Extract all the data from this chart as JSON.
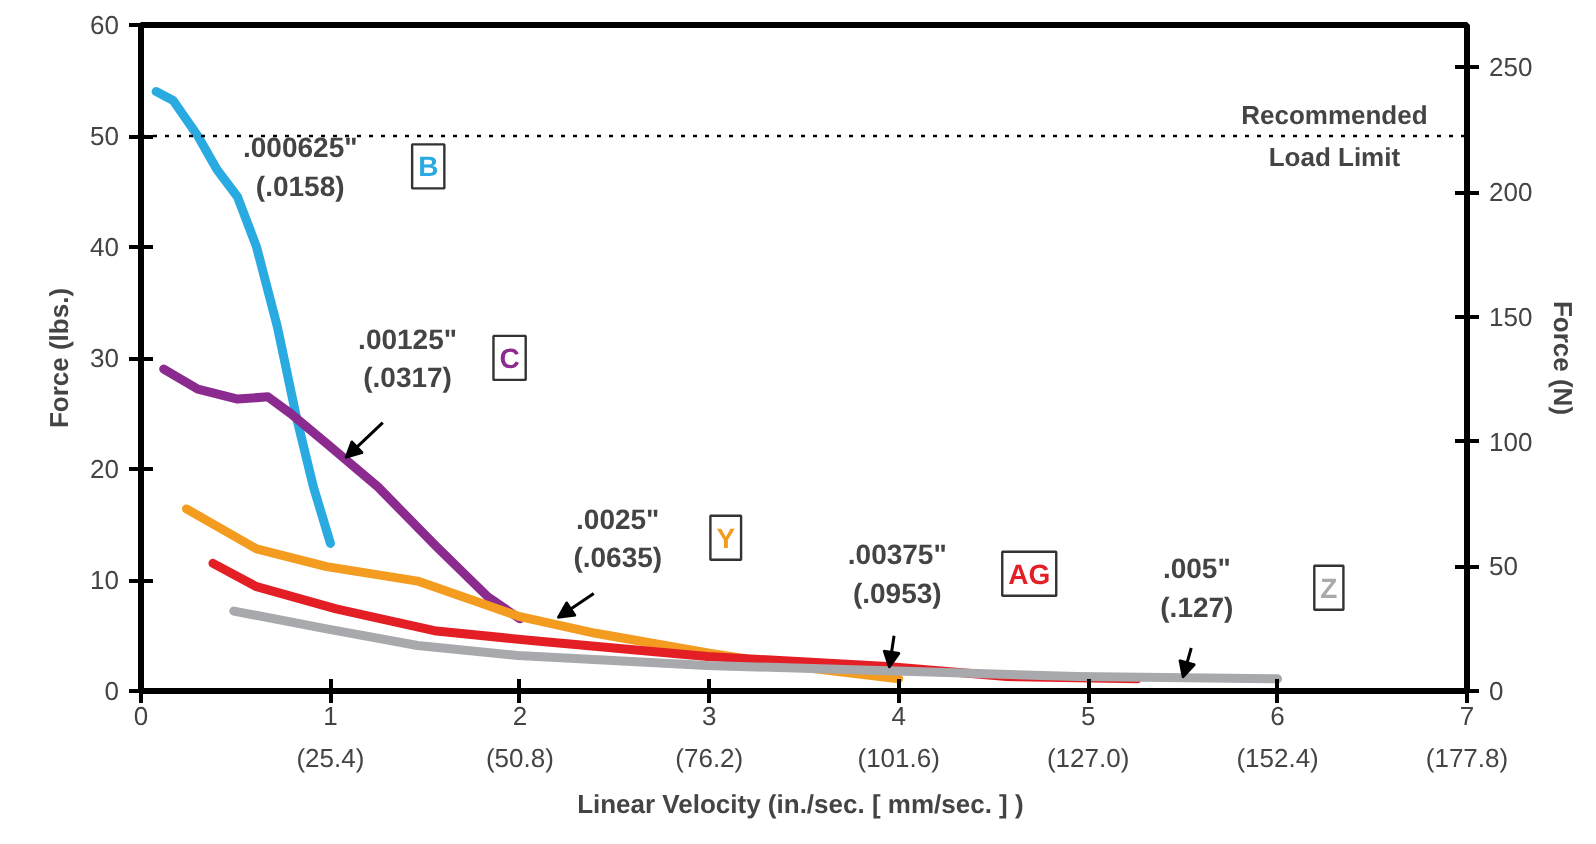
{
  "chart_data": {
    "type": "line",
    "xlabel": "Linear Velocity  (in./sec. [ mm/sec. ] )",
    "ylabel": "Force (lbs.)",
    "y2label": "Force (N)",
    "xlim": [
      0,
      7
    ],
    "xticks": [
      0,
      1,
      2,
      3,
      4,
      5,
      6,
      7
    ],
    "x2lim": [
      0,
      177.8
    ],
    "x2ticks": [
      {
        "value": 25.4,
        "label": "(25.4)"
      },
      {
        "value": 50.8,
        "label": "(50.8)"
      },
      {
        "value": 76.2,
        "label": "(76.2)"
      },
      {
        "value": 101.6,
        "label": "(101.6)"
      },
      {
        "value": 127.0,
        "label": "(127.0)"
      },
      {
        "value": 152.4,
        "label": "(152.4)"
      },
      {
        "value": 177.8,
        "label": "(177.8)"
      }
    ],
    "ylim": [
      0,
      60
    ],
    "yticks": [
      0,
      10,
      20,
      30,
      40,
      50,
      60
    ],
    "y2lim": [
      0,
      267
    ],
    "y2ticks": [
      0,
      50,
      100,
      150,
      200,
      250
    ],
    "grid": false,
    "marker": "none",
    "line_style": "solid",
    "ref_lines": [
      {
        "axis": "y",
        "value": 50,
        "label": "Recommended\nLoad Limit",
        "color": "#000000",
        "line_style": "dotted"
      }
    ],
    "annotations": [
      {
        "text": ".000625\"\n(.0158)",
        "x": 0.45,
        "y": 46
      },
      {
        "text": ".00125\"\n(.0317)",
        "x": 1.08,
        "y": 21
      },
      {
        "text": ".0025\"\n(.0635)",
        "x": 2.2,
        "y": 6.6
      },
      {
        "text": ".00375\"\n(.0953)",
        "x": 3.95,
        "y": 2.1
      },
      {
        "text": ".005\"\n(.127)",
        "x": 5.5,
        "y": 1.2
      }
    ],
    "series": [
      {
        "name": "B",
        "color": "#29aae1",
        "x": [
          0.08,
          0.17,
          0.3,
          0.4,
          0.51,
          0.61,
          0.72,
          0.82,
          0.91,
          1.0
        ],
        "values": [
          54,
          53.2,
          50,
          47,
          44.5,
          40,
          32.8,
          24.7,
          18.4,
          13.3
        ]
      },
      {
        "name": "C",
        "color": "#8b2a8f",
        "x": [
          0.12,
          0.3,
          0.51,
          0.67,
          0.79,
          0.98,
          1.25,
          1.56,
          1.83,
          2.0
        ],
        "values": [
          29,
          27.2,
          26.3,
          26.5,
          25,
          22.3,
          18.4,
          13,
          8.5,
          6.5
        ]
      },
      {
        "name": "Y",
        "color": "#f39c1f",
        "x": [
          0.24,
          0.61,
          0.98,
          1.46,
          2.0,
          2.4,
          3.0,
          3.46,
          4.0
        ],
        "values": [
          16.4,
          12.8,
          11.2,
          9.9,
          6.7,
          5.2,
          3.4,
          2.2,
          1.1
        ]
      },
      {
        "name": "AG",
        "color": "#e31e25",
        "x": [
          0.38,
          0.61,
          1.03,
          1.56,
          2.09,
          2.99,
          3.94,
          4.57,
          5.26
        ],
        "values": [
          11.5,
          9.4,
          7.4,
          5.4,
          4.5,
          3.1,
          2.2,
          1.3,
          1.1
        ]
      },
      {
        "name": "Z",
        "color": "#a7a9ac",
        "x": [
          0.49,
          0.98,
          1.46,
          1.99,
          2.99,
          3.99,
          4.94,
          6.0
        ],
        "values": [
          7.2,
          5.6,
          4.1,
          3.2,
          2.3,
          1.8,
          1.3,
          1.1
        ]
      }
    ]
  }
}
